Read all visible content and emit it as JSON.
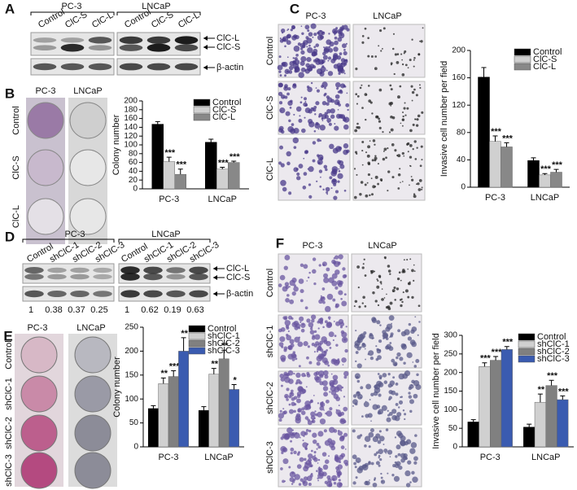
{
  "figure": {
    "A": {
      "letter": "A",
      "groups": [
        "PC-3",
        "LNCaP"
      ],
      "lanes": [
        "Control",
        "ClC-S",
        "ClC-L",
        "Control",
        "ClC-S",
        "ClC-L"
      ],
      "bands": [
        "ClC-L",
        "ClC-S",
        "β-actin"
      ]
    },
    "B": {
      "letter": "B",
      "groups": [
        "PC-3",
        "LNCaP"
      ],
      "rows": [
        "Control",
        "ClC-S",
        "ClC-L"
      ]
    },
    "C": {
      "letter": "C",
      "groups": [
        "PC-3",
        "LNCaP"
      ],
      "rows": [
        "Control",
        "ClC-S",
        "ClC-L"
      ]
    },
    "D": {
      "letter": "D",
      "groups": [
        "PC-3",
        "LNCaP"
      ],
      "lanes": [
        "Control",
        "shClC-1",
        "shClC-2",
        "shClC-3",
        "Control",
        "shClC-1",
        "shClC-2",
        "shClC-3"
      ],
      "bands": [
        "ClC-L",
        "ClC-S",
        "β-actin"
      ],
      "quant": [
        1,
        0.38,
        0.37,
        0.25,
        1,
        0.62,
        0.19,
        0.63
      ]
    },
    "E": {
      "letter": "E",
      "groups": [
        "PC-3",
        "LNCaP"
      ],
      "rows": [
        "Control",
        "shClC-1",
        "shClC-2",
        "shClC-3"
      ]
    },
    "F": {
      "letter": "F",
      "groups": [
        "PC-3",
        "LNCaP"
      ],
      "rows": [
        "Control",
        "shClC-1",
        "shClC-2",
        "shClC-3"
      ]
    }
  },
  "chart_data": [
    {
      "type": "bar",
      "y_label": "Colony number",
      "categories": [
        "PC-3",
        "LNCaP"
      ],
      "ylim": [
        0,
        200
      ],
      "yticks": [
        0,
        20,
        40,
        60,
        80,
        100,
        120,
        140,
        160,
        180,
        200
      ],
      "series": [
        {
          "name": "Control",
          "color": "#000000",
          "values": [
            147,
            106
          ],
          "errors": [
            6,
            7
          ],
          "significance": [
            null,
            null
          ]
        },
        {
          "name": "ClC-S",
          "color": "#d0d0d0",
          "values": [
            62,
            45
          ],
          "errors": [
            10,
            4
          ],
          "significance": [
            "***",
            "***"
          ]
        },
        {
          "name": "ClC-L",
          "color": "#888888",
          "values": [
            33,
            60
          ],
          "errors": [
            12,
            3
          ],
          "significance": [
            "***",
            "***"
          ]
        }
      ]
    },
    {
      "type": "bar",
      "y_label": "Invasive cell number per field",
      "categories": [
        "PC-3",
        "LNCaP"
      ],
      "ylim": [
        0,
        200
      ],
      "yticks": [
        0,
        40,
        80,
        120,
        160,
        200
      ],
      "series": [
        {
          "name": "Control",
          "color": "#000000",
          "values": [
            161,
            39
          ],
          "errors": [
            14,
            4
          ],
          "significance": [
            null,
            null
          ]
        },
        {
          "name": "ClC-S",
          "color": "#d0d0d0",
          "values": [
            67,
            18
          ],
          "errors": [
            8,
            2
          ],
          "significance": [
            "***",
            "***"
          ]
        },
        {
          "name": "ClC-L",
          "color": "#888888",
          "values": [
            59,
            22
          ],
          "errors": [
            6,
            4
          ],
          "significance": [
            "***",
            "***"
          ]
        }
      ]
    },
    {
      "type": "bar",
      "y_label": "Colony number",
      "categories": [
        "PC-3",
        "LNCaP"
      ],
      "ylim": [
        0,
        250
      ],
      "yticks": [
        0,
        50,
        100,
        150,
        200,
        250
      ],
      "series": [
        {
          "name": "Control",
          "color": "#000000",
          "values": [
            80,
            76
          ],
          "errors": [
            6,
            8
          ],
          "significance": [
            null,
            null
          ]
        },
        {
          "name": "shClC-1",
          "color": "#d0d0d0",
          "values": [
            132,
            152
          ],
          "errors": [
            12,
            12
          ],
          "significance": [
            "**",
            "**"
          ]
        },
        {
          "name": "shClC-2",
          "color": "#808080",
          "values": [
            147,
            184
          ],
          "errors": [
            12,
            18
          ],
          "significance": [
            "***",
            "**"
          ]
        },
        {
          "name": "shClC-3",
          "color": "#3a5bb0",
          "values": [
            200,
            120
          ],
          "errors": [
            28,
            10
          ],
          "significance": [
            "**",
            "*"
          ]
        }
      ]
    },
    {
      "type": "bar",
      "y_label": "Invasive cell number per field",
      "categories": [
        "PC-3",
        "LNCaP"
      ],
      "ylim": [
        0,
        300
      ],
      "yticks": [
        0,
        50,
        100,
        150,
        200,
        250,
        300
      ],
      "series": [
        {
          "name": "Control",
          "color": "#000000",
          "values": [
            67,
            53
          ],
          "errors": [
            6,
            8
          ],
          "significance": [
            null,
            null
          ]
        },
        {
          "name": "shClC-1",
          "color": "#d0d0d0",
          "values": [
            216,
            120
          ],
          "errors": [
            10,
            22
          ],
          "significance": [
            "***",
            "**"
          ]
        },
        {
          "name": "shClC-2",
          "color": "#808080",
          "values": [
            233,
            165
          ],
          "errors": [
            10,
            14
          ],
          "significance": [
            "***",
            "***"
          ]
        },
        {
          "name": "shClC-3",
          "color": "#3a5bb0",
          "values": [
            262,
            127
          ],
          "errors": [
            8,
            10
          ],
          "significance": [
            "***",
            "***"
          ]
        }
      ]
    }
  ]
}
